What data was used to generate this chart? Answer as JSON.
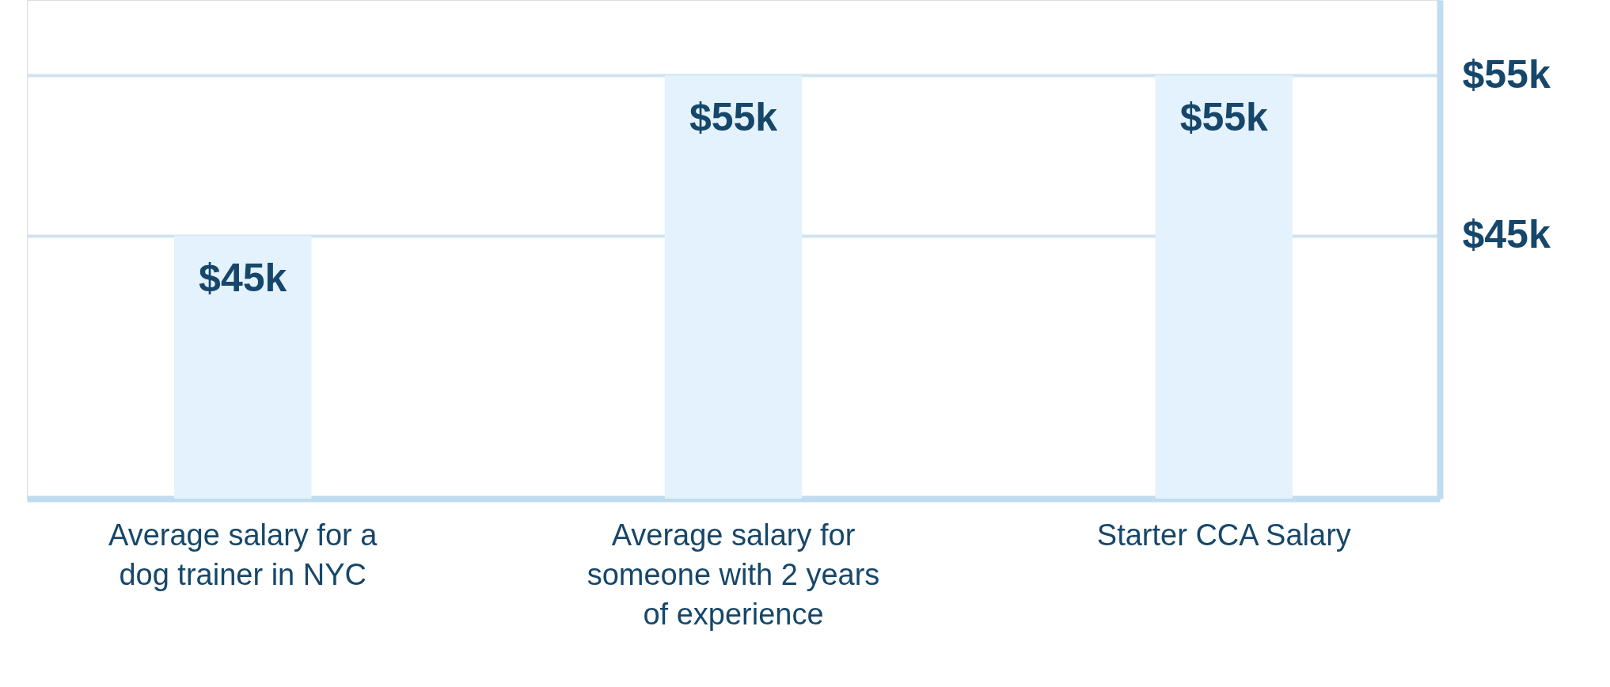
{
  "chart_data": {
    "type": "bar",
    "categories": [
      "Average salary for a dog trainer in NYC",
      "Average salary for someone with 2 years of experience",
      "Starter CCA Salary"
    ],
    "values": [
      45,
      55,
      55
    ],
    "value_labels": [
      "$45k",
      "$55k",
      "$55k"
    ],
    "color": "#e3f2fc",
    "ylim": [
      28.6,
      59.7
    ],
    "yticks": [
      {
        "value": 45,
        "label": "$45k"
      },
      {
        "value": 55,
        "label": "$55k"
      }
    ],
    "grid": "y"
  }
}
